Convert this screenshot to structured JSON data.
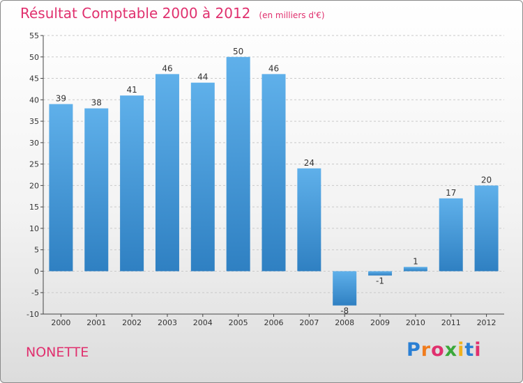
{
  "title": "Résultat Comptable 2000 à 2012",
  "unit": "(en milliers d'€)",
  "commune": "NONETTE",
  "logo": "Proxiti",
  "colors": {
    "title": "#e0306e",
    "bar_light": "#5fb0ea",
    "bar_dark": "#2f80c2",
    "grid": "#c9c9c9",
    "axis": "#444444"
  },
  "chart_data": {
    "type": "bar",
    "categories": [
      "2000",
      "2001",
      "2002",
      "2003",
      "2004",
      "2005",
      "2006",
      "2007",
      "2008",
      "2009",
      "2010",
      "2011",
      "2012"
    ],
    "values": [
      39,
      38,
      41,
      46,
      44,
      50,
      46,
      24,
      -8,
      -1,
      1,
      17,
      20
    ],
    "value_labels": [
      "39",
      "38",
      "41",
      "46",
      "44",
      "50",
      "46",
      "24",
      "-8",
      "-1",
      "1",
      "17",
      "20"
    ],
    "y_ticks": [
      -10,
      -5,
      0,
      5,
      10,
      15,
      20,
      25,
      30,
      35,
      40,
      45,
      50,
      55
    ],
    "ylim": [
      -10,
      55
    ],
    "grid": "horizontal dashed",
    "legend": "none"
  }
}
